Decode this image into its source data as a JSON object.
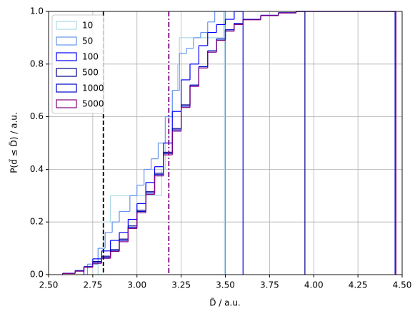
{
  "chart_data": {
    "type": "step",
    "xlabel": "D̃ / a.u.",
    "ylabel": "P(d̃ ≤ D̃) / a.u.",
    "xlim": [
      2.5,
      4.5
    ],
    "ylim": [
      0,
      1
    ],
    "xticks": [
      {
        "value": 2.5,
        "label": "2.50"
      },
      {
        "value": 2.75,
        "label": "2.75"
      },
      {
        "value": 3.0,
        "label": "3.00"
      },
      {
        "value": 3.25,
        "label": "3.25"
      },
      {
        "value": 3.5,
        "label": "3.50"
      },
      {
        "value": 3.75,
        "label": "3.75"
      },
      {
        "value": 4.0,
        "label": "4.00"
      },
      {
        "value": 4.25,
        "label": "4.25"
      },
      {
        "value": 4.5,
        "label": "4.50"
      }
    ],
    "yticks": [
      {
        "value": 0,
        "label": "0.0"
      },
      {
        "value": 0.2,
        "label": "0.2"
      },
      {
        "value": 0.4,
        "label": "0.4"
      },
      {
        "value": 0.6,
        "label": "0.6"
      },
      {
        "value": 0.8,
        "label": "0.8"
      },
      {
        "value": 1,
        "label": "1.0"
      }
    ],
    "grid": true,
    "legend": "upper-left",
    "vlines": [
      {
        "x": 2.81,
        "color": "#000000",
        "dash": "dashed"
      },
      {
        "x": 3.18,
        "color": "#800080",
        "dash": "dashdot"
      }
    ],
    "series": [
      {
        "name": "10",
        "color": "#add8e6",
        "bins": [
          2.78,
          2.81,
          2.85,
          3.14,
          3.16,
          3.18,
          3.2,
          3.23,
          3.24,
          3.49,
          3.495
        ],
        "values": [
          0.1,
          0.2,
          0.3,
          0.4,
          0.5,
          0.6,
          0.7,
          0.8,
          0.9,
          1.0
        ]
      },
      {
        "name": "50",
        "color": "#6495ed",
        "bins": [
          2.72,
          2.78,
          2.82,
          2.86,
          2.9,
          2.96,
          3.0,
          3.04,
          3.08,
          3.12,
          3.16,
          3.2,
          3.24,
          3.28,
          3.32,
          3.36,
          3.4,
          3.44,
          3.5
        ],
        "values": [
          0.04,
          0.1,
          0.16,
          0.2,
          0.24,
          0.3,
          0.34,
          0.4,
          0.44,
          0.5,
          0.6,
          0.7,
          0.84,
          0.86,
          0.9,
          0.92,
          0.96,
          1.0
        ]
      },
      {
        "name": "100",
        "color": "#0000ff",
        "bins": [
          2.7,
          2.75,
          2.8,
          2.85,
          2.9,
          2.95,
          3.0,
          3.05,
          3.1,
          3.15,
          3.2,
          3.25,
          3.3,
          3.35,
          3.4,
          3.45,
          3.5,
          3.55,
          3.6
        ],
        "values": [
          0.03,
          0.06,
          0.09,
          0.13,
          0.16,
          0.21,
          0.27,
          0.35,
          0.41,
          0.5,
          0.62,
          0.74,
          0.8,
          0.87,
          0.92,
          0.95,
          0.97,
          1.0
        ]
      },
      {
        "name": "500",
        "color": "#00008b",
        "bins": [
          2.58,
          2.65,
          2.7,
          2.75,
          2.8,
          2.85,
          2.9,
          2.95,
          3.0,
          3.05,
          3.1,
          3.15,
          3.2,
          3.25,
          3.3,
          3.35,
          3.4,
          3.45,
          3.5,
          3.55,
          3.6,
          3.7,
          3.8,
          3.9,
          3.95
        ],
        "values": [
          0.005,
          0.015,
          0.03,
          0.05,
          0.07,
          0.095,
          0.135,
          0.185,
          0.245,
          0.315,
          0.385,
          0.465,
          0.555,
          0.645,
          0.72,
          0.79,
          0.85,
          0.895,
          0.93,
          0.955,
          0.97,
          0.985,
          0.995,
          1.0
        ]
      },
      {
        "name": "1000",
        "color": "#0000cd",
        "bins": [
          2.58,
          2.65,
          2.7,
          2.75,
          2.8,
          2.85,
          2.9,
          2.95,
          3.0,
          3.05,
          3.1,
          3.15,
          3.2,
          3.25,
          3.3,
          3.35,
          3.4,
          3.45,
          3.5,
          3.55,
          3.6,
          3.7,
          3.8,
          3.9,
          4.46
        ],
        "values": [
          0.005,
          0.015,
          0.03,
          0.045,
          0.065,
          0.09,
          0.13,
          0.18,
          0.24,
          0.31,
          0.38,
          0.46,
          0.55,
          0.64,
          0.72,
          0.79,
          0.85,
          0.895,
          0.93,
          0.955,
          0.97,
          0.985,
          0.995,
          1.0
        ]
      },
      {
        "name": "5000",
        "color": "#800080",
        "bins": [
          2.58,
          2.65,
          2.7,
          2.75,
          2.8,
          2.85,
          2.9,
          2.95,
          3.0,
          3.05,
          3.1,
          3.15,
          3.2,
          3.25,
          3.3,
          3.35,
          3.4,
          3.45,
          3.5,
          3.55,
          3.6,
          3.7,
          3.8,
          3.9,
          4.465
        ],
        "values": [
          0.004,
          0.013,
          0.028,
          0.043,
          0.062,
          0.088,
          0.125,
          0.175,
          0.235,
          0.305,
          0.375,
          0.455,
          0.545,
          0.635,
          0.715,
          0.785,
          0.845,
          0.89,
          0.925,
          0.95,
          0.968,
          0.984,
          0.994,
          1.0
        ]
      }
    ]
  }
}
